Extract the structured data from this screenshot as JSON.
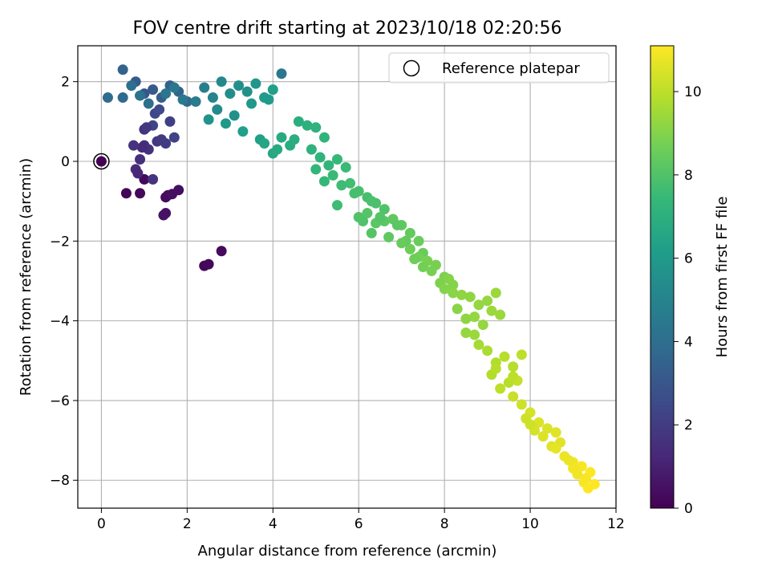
{
  "chart_data": {
    "type": "scatter",
    "title": "FOV centre drift starting at 2023/10/18 02:20:56",
    "xlabel": "Angular distance from reference (arcmin)",
    "ylabel": "Rotation from reference (arcmin)",
    "xlim": [
      -0.55,
      12.0
    ],
    "ylim": [
      -8.7,
      2.9
    ],
    "xticks": [
      0,
      2,
      4,
      6,
      8,
      10,
      12
    ],
    "yticks": [
      2,
      0,
      -2,
      -4,
      -6,
      -8
    ],
    "xtick_labels": [
      "0",
      "2",
      "4",
      "6",
      "8",
      "10",
      "12"
    ],
    "ytick_labels": [
      "2",
      "0",
      "−2",
      "−4",
      "−6",
      "−8"
    ],
    "grid": true,
    "legend": {
      "position": "top-right",
      "entries": [
        "Reference platepar"
      ]
    },
    "reference_point": {
      "x": 0,
      "y": 0,
      "label": "Reference platepar"
    },
    "colorbar": {
      "label": "Hours from first FF file",
      "range": [
        0,
        11.1
      ],
      "ticks": [
        0,
        2,
        4,
        6,
        8,
        10
      ],
      "tick_labels": [
        "0",
        "2",
        "4",
        "6",
        "8",
        "10"
      ],
      "colormap": "viridis",
      "stops": [
        "#440154",
        "#482878",
        "#3e4989",
        "#31688e",
        "#26828e",
        "#1f9e89",
        "#35b779",
        "#6ece58",
        "#b5de2b",
        "#fde725"
      ]
    },
    "series": [
      {
        "x": [
          0,
          0.58,
          0.9,
          1.0,
          1.5,
          1.55,
          1.65,
          1.8,
          1.5,
          1.45,
          2.4,
          2.5,
          2.8,
          1.0,
          1.1,
          1.2,
          1.3,
          1.4,
          1.5,
          1.6,
          1.7,
          0.8,
          0.9,
          1.0,
          1.2,
          1.25,
          1.35,
          0.85,
          0.95,
          1.05,
          0.75,
          0.5,
          0.8,
          1.0,
          1.2,
          1.4,
          1.6,
          1.8,
          2.0,
          0.15,
          0.5,
          0.7,
          0.9,
          1.1,
          1.5,
          1.7,
          1.9,
          2.2,
          2.4,
          2.6,
          2.8,
          3.0,
          3.2,
          3.4,
          3.6,
          3.8,
          4.0,
          4.2,
          2.7,
          3.1,
          3.5,
          3.9,
          2.5,
          2.9,
          3.3,
          3.7,
          3.8,
          4.0,
          4.2,
          4.4,
          4.6,
          4.8,
          5.0,
          5.2,
          4.1,
          4.5,
          4.9,
          5.1,
          5.3,
          5.5,
          5.7,
          5.0,
          5.2,
          5.4,
          5.6,
          5.8,
          6.0,
          6.2,
          6.4,
          5.5,
          5.9,
          6.3,
          6.6,
          6.0,
          6.2,
          6.4,
          6.6,
          6.8,
          7.0,
          7.2,
          7.4,
          6.3,
          6.7,
          7.1,
          7.5,
          6.1,
          6.5,
          6.9,
          7.0,
          7.2,
          7.4,
          7.6,
          7.8,
          8.0,
          8.2,
          7.3,
          7.7,
          8.1,
          7.5,
          7.9,
          8.0,
          8.2,
          8.4,
          8.6,
          8.8,
          9.0,
          9.2,
          8.3,
          8.7,
          9.1,
          8.5,
          8.9,
          9.3,
          8.5,
          8.7,
          8.8,
          9.0,
          9.2,
          9.4,
          9.6,
          9.8,
          9.1,
          9.5,
          9.3,
          9.7,
          9.2,
          9.6,
          9.6,
          9.8,
          10.0,
          10.2,
          10.4,
          10.6,
          9.9,
          10.3,
          10.7,
          10.1,
          10.5,
          10.0,
          10.6,
          10.8,
          11.0,
          11.2,
          11.4,
          10.9,
          11.1,
          11.3,
          11.5,
          11.0,
          11.25,
          11.35
        ],
        "y": [
          0,
          -0.8,
          -0.8,
          -0.45,
          -0.9,
          -0.85,
          -0.82,
          -0.72,
          -1.3,
          -1.35,
          -2.62,
          -2.58,
          -2.25,
          0.4,
          0.3,
          -0.45,
          0.5,
          0.55,
          0.45,
          1.0,
          0.6,
          -0.2,
          0.05,
          0.8,
          0.9,
          1.2,
          1.3,
          -0.3,
          0.35,
          0.85,
          0.4,
          2.3,
          2.0,
          1.7,
          1.8,
          1.6,
          1.9,
          1.75,
          1.5,
          1.6,
          1.6,
          1.9,
          1.65,
          1.45,
          1.7,
          1.85,
          1.55,
          1.5,
          1.85,
          1.6,
          2.0,
          1.7,
          1.9,
          1.75,
          1.95,
          1.6,
          1.8,
          2.2,
          1.3,
          1.15,
          1.45,
          1.55,
          1.05,
          0.95,
          0.75,
          0.55,
          0.45,
          0.2,
          0.6,
          0.4,
          1.0,
          0.9,
          0.85,
          0.6,
          0.3,
          0.55,
          0.3,
          0.1,
          -0.1,
          0.05,
          -0.15,
          -0.2,
          -0.5,
          -0.35,
          -0.6,
          -0.55,
          -0.75,
          -0.9,
          -1.05,
          -1.1,
          -0.8,
          -1.0,
          -1.2,
          -1.4,
          -1.3,
          -1.55,
          -1.5,
          -1.45,
          -1.6,
          -1.8,
          -2.0,
          -1.8,
          -1.9,
          -2.0,
          -2.3,
          -1.5,
          -1.4,
          -1.6,
          -2.05,
          -2.2,
          -2.4,
          -2.5,
          -2.6,
          -2.9,
          -3.1,
          -2.45,
          -2.75,
          -2.95,
          -2.65,
          -3.05,
          -3.2,
          -3.3,
          -3.35,
          -3.4,
          -3.6,
          -3.5,
          -3.3,
          -3.7,
          -3.9,
          -3.75,
          -3.95,
          -4.1,
          -3.85,
          -4.3,
          -4.35,
          -4.6,
          -4.75,
          -5.05,
          -4.9,
          -5.15,
          -4.85,
          -5.35,
          -5.55,
          -5.7,
          -5.5,
          -5.2,
          -5.4,
          -5.9,
          -6.1,
          -6.3,
          -6.55,
          -6.7,
          -6.8,
          -6.45,
          -6.9,
          -7.05,
          -6.75,
          -7.15,
          -6.6,
          -7.2,
          -7.4,
          -7.55,
          -7.65,
          -7.8,
          -7.5,
          -7.85,
          -7.95,
          -8.1,
          -7.7,
          -8.05,
          -8.2
        ],
        "hours": [
          0,
          0.1,
          0.2,
          0.25,
          0.3,
          0.35,
          0.4,
          0.45,
          0.5,
          0.55,
          0.15,
          0.2,
          0.3,
          1.5,
          1.6,
          1.7,
          1.8,
          1.9,
          2.0,
          2.1,
          2.2,
          1.4,
          1.5,
          1.6,
          2.3,
          2.4,
          2.5,
          1.2,
          1.3,
          1.8,
          1.7,
          3.5,
          3.2,
          3.0,
          3.1,
          3.3,
          3.4,
          3.6,
          3.7,
          3.9,
          3.8,
          4.0,
          4.2,
          4.1,
          4.3,
          4.4,
          4.5,
          4.6,
          4.8,
          5.0,
          5.2,
          5.4,
          5.5,
          5.6,
          5.8,
          6.0,
          6.2,
          4.4,
          5.3,
          5.6,
          5.9,
          6.1,
          5.7,
          5.9,
          6.2,
          6.3,
          6.5,
          6.6,
          6.7,
          6.8,
          6.9,
          7.0,
          7.1,
          7.2,
          6.7,
          6.9,
          7.1,
          7.2,
          7.3,
          7.4,
          7.5,
          7.3,
          7.4,
          7.5,
          7.6,
          7.7,
          7.8,
          7.8,
          7.9,
          7.6,
          7.8,
          7.9,
          8.0,
          8.0,
          8.1,
          8.2,
          8.2,
          8.3,
          8.3,
          8.4,
          8.5,
          8.1,
          8.3,
          8.4,
          8.5,
          8.0,
          8.1,
          8.2,
          8.5,
          8.6,
          8.7,
          8.8,
          8.8,
          8.9,
          9.0,
          8.6,
          8.8,
          9.0,
          8.7,
          8.9,
          9.0,
          9.1,
          9.2,
          9.2,
          9.3,
          9.3,
          9.4,
          9.1,
          9.3,
          9.4,
          9.2,
          9.3,
          9.4,
          9.3,
          9.4,
          9.6,
          9.7,
          9.8,
          9.9,
          9.9,
          10.0,
          9.8,
          9.9,
          10.0,
          10.1,
          9.9,
          10.0,
          10.2,
          10.3,
          10.4,
          10.5,
          10.5,
          10.6,
          10.3,
          10.5,
          10.6,
          10.4,
          10.6,
          10.3,
          10.7,
          10.8,
          10.9,
          11.0,
          11.1,
          10.8,
          10.9,
          11.0,
          11.1,
          10.9,
          11.0,
          11.1
        ]
      }
    ]
  }
}
